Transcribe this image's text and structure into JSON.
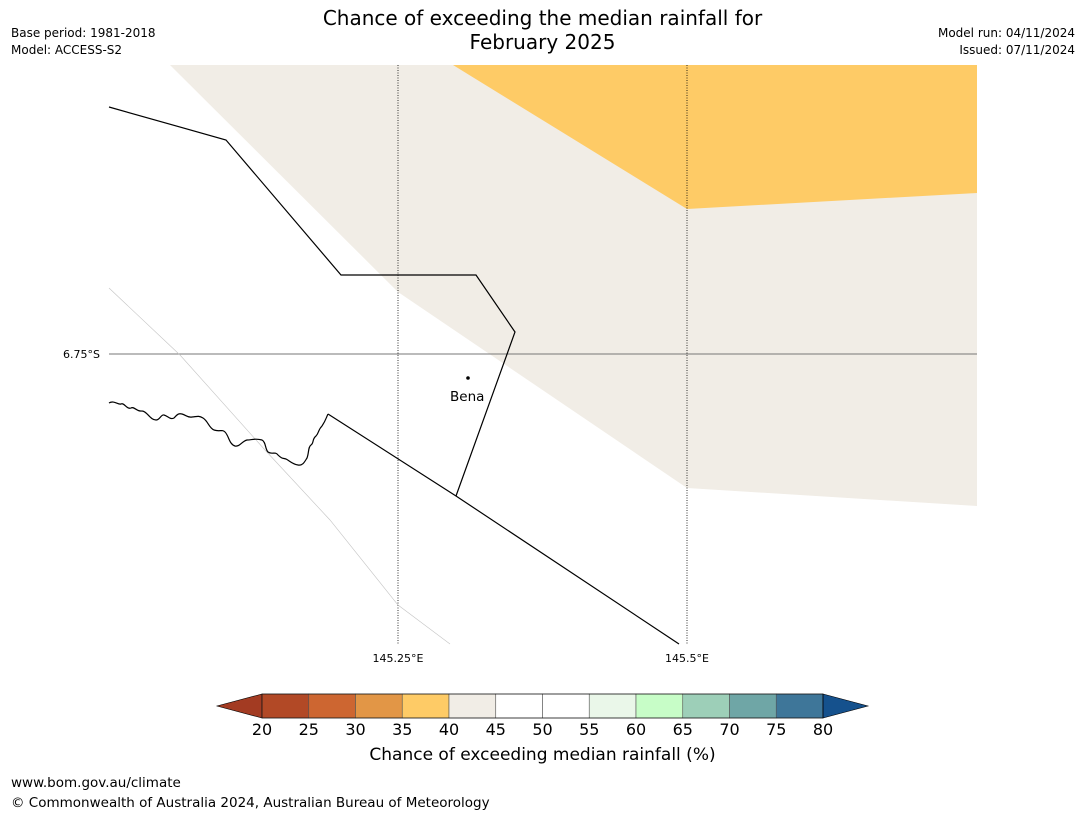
{
  "title": {
    "line1": "Chance of exceeding the median rainfall for",
    "line2": "February 2025"
  },
  "meta_left": {
    "base_period": "Base period: 1981-2018",
    "model": "Model: ACCESS-S2"
  },
  "meta_right": {
    "model_run": "Model run: 04/11/2024",
    "issued": "Issued: 07/11/2024"
  },
  "map": {
    "lat_label": "6.75°S",
    "lon_labels": [
      "145.25°E",
      "145.5°E"
    ],
    "place": "Bena",
    "zone_colors": {
      "35-40": "#fecb66",
      "40-45": "#f1ede6",
      "45-55": "#ffffff"
    }
  },
  "colorbar": {
    "ticks": [
      "20",
      "25",
      "30",
      "35",
      "40",
      "45",
      "50",
      "55",
      "60",
      "65",
      "70",
      "75",
      "80"
    ],
    "colors": [
      "#a33b22",
      "#b24926",
      "#cd6631",
      "#e29646",
      "#fecb66",
      "#f1ede6",
      "#ffffff",
      "#ffffff",
      "#eaf7e9",
      "#c7fdc7",
      "#9dcfb8",
      "#6fa6a6",
      "#3e7699",
      "#15518d"
    ],
    "title": "Chance of exceeding median rainfall (%)"
  },
  "footer": {
    "url": "www.bom.gov.au/climate",
    "copyright": "© Commonwealth of Australia 2024, Australian Bureau of Meteorology"
  }
}
